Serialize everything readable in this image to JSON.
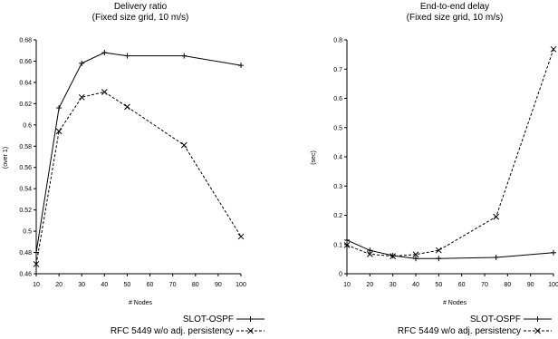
{
  "chart_data": [
    {
      "type": "line",
      "title": "Delivery ratio",
      "subtitle": "(Fixed size grid, 10 m/s)",
      "xlabel": "# Nodes",
      "ylabel": "(over 1)",
      "xlim": [
        10,
        100
      ],
      "ylim": [
        0.46,
        0.68
      ],
      "xticks": [
        10,
        20,
        30,
        40,
        50,
        60,
        70,
        80,
        90,
        100
      ],
      "yticks": [
        0.46,
        0.48,
        0.5,
        0.52,
        0.54,
        0.56,
        0.58,
        0.6,
        0.62,
        0.64,
        0.66,
        0.68
      ],
      "ytick_labels": [
        "0.46",
        "0.48",
        "0.5",
        "0.52",
        "0.54",
        "0.56",
        "0.58",
        "0.6",
        "0.62",
        "0.64",
        "0.66",
        "0.68"
      ],
      "grid": false,
      "legend": "bottom-right",
      "series": [
        {
          "name": "SLOT-OSPF",
          "marker": "plus",
          "dash": "solid",
          "x": [
            10,
            20,
            30,
            40,
            50,
            75,
            100
          ],
          "y": [
            0.48,
            0.616,
            0.658,
            0.668,
            0.665,
            0.665,
            0.656
          ]
        },
        {
          "name": "RFC 5449 w/o adj. persistency",
          "marker": "x",
          "dash": "dashed",
          "x": [
            10,
            20,
            30,
            40,
            50,
            75,
            100
          ],
          "y": [
            0.469,
            0.594,
            0.626,
            0.631,
            0.617,
            0.581,
            0.495
          ]
        }
      ]
    },
    {
      "type": "line",
      "title": "End-to-end delay",
      "subtitle": "(Fixed size grid, 10 m/s)",
      "xlabel": "# Nodes",
      "ylabel": "(sec)",
      "xlim": [
        10,
        100
      ],
      "ylim": [
        0,
        0.8
      ],
      "xticks": [
        10,
        20,
        30,
        40,
        50,
        60,
        70,
        80,
        90,
        100
      ],
      "yticks": [
        0,
        0.1,
        0.2,
        0.3,
        0.4,
        0.5,
        0.6,
        0.7,
        0.8
      ],
      "ytick_labels": [
        "0",
        "0.1",
        "0.2",
        "0.3",
        "0.4",
        "0.5",
        "0.6",
        "0.7",
        "0.8"
      ],
      "grid": false,
      "legend": "bottom-right",
      "series": [
        {
          "name": "SLOT-OSPF",
          "marker": "plus",
          "dash": "solid",
          "x": [
            10,
            20,
            30,
            40,
            50,
            75,
            100
          ],
          "y": [
            0.115,
            0.08,
            0.062,
            0.052,
            0.052,
            0.056,
            0.072
          ]
        },
        {
          "name": "RFC 5449 w/o adj. persistency",
          "marker": "x",
          "dash": "dashed",
          "x": [
            10,
            20,
            30,
            40,
            50,
            75,
            100
          ],
          "y": [
            0.098,
            0.067,
            0.06,
            0.066,
            0.08,
            0.195,
            0.768
          ]
        }
      ]
    }
  ]
}
